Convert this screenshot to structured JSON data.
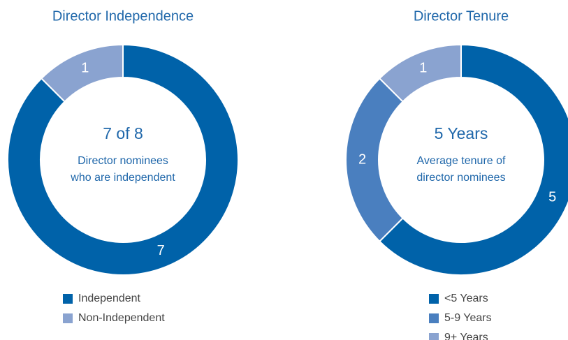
{
  "chart_data": [
    {
      "type": "donut",
      "title": "Director Independence",
      "center_title": "7 of 8",
      "center_text": [
        "Director nominees",
        "who are independent"
      ],
      "categories": [
        "Independent",
        "Non-Independent"
      ],
      "values": [
        7,
        1
      ],
      "colors": [
        "#0062a9",
        "#8aa3d0"
      ]
    },
    {
      "type": "donut",
      "title": "Director Tenure",
      "center_title": "5 Years",
      "center_text": [
        "Average tenure of",
        "director nominees"
      ],
      "categories": [
        "<5 Years",
        "5-9 Years",
        "9+ Years"
      ],
      "values": [
        5,
        2,
        1
      ],
      "colors": [
        "#0062a9",
        "#4a7fbf",
        "#8aa3d0"
      ]
    }
  ]
}
